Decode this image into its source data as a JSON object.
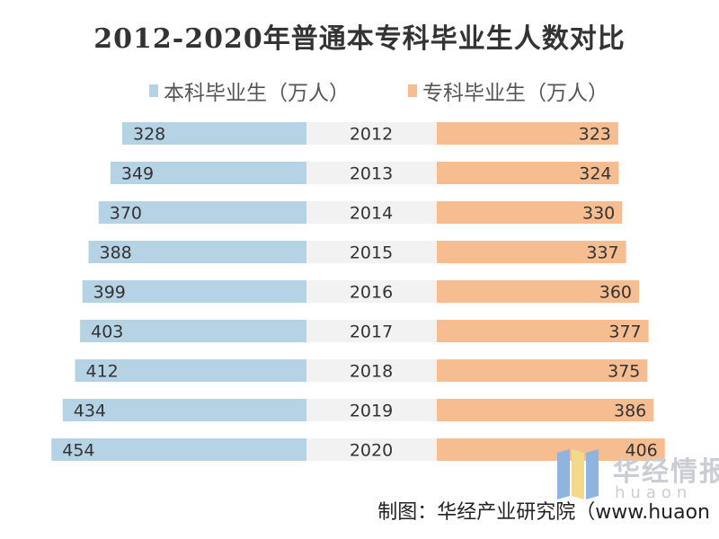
{
  "chart_data": {
    "type": "bar",
    "title": "2012-2020年普通本专科毕业生人数对比",
    "categories": [
      "2012",
      "2013",
      "2014",
      "2015",
      "2016",
      "2017",
      "2018",
      "2019",
      "2020"
    ],
    "series": [
      {
        "name": "本科毕业生（万人）",
        "values": [
          328,
          349,
          370,
          388,
          399,
          403,
          412,
          434,
          454
        ],
        "color": "#b6d3e5"
      },
      {
        "name": "专科毕业生（万人）",
        "values": [
          323,
          324,
          330,
          337,
          360,
          377,
          375,
          386,
          406
        ],
        "color": "#f6bd91"
      }
    ],
    "orientation": "horizontal-butterfly",
    "legend_position": "top",
    "grid": false
  },
  "source": "制图：华经产业研究院（www.huaon",
  "watermark": {
    "text": "华经情报",
    "url": "huaon"
  }
}
